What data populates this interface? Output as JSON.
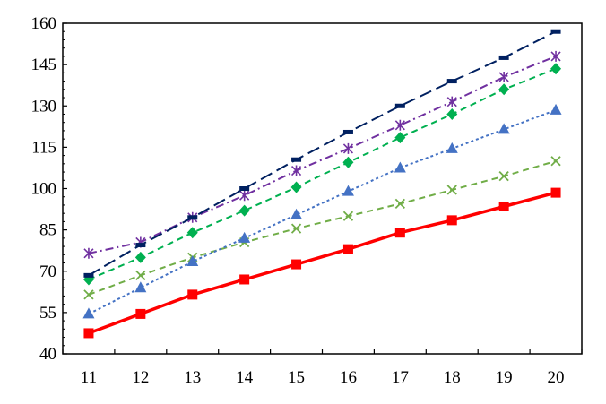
{
  "chart_data": {
    "type": "line",
    "x": [
      11,
      12,
      13,
      14,
      15,
      16,
      17,
      18,
      19,
      20
    ],
    "xlim": [
      10.5,
      20.5
    ],
    "ylim": [
      40,
      160
    ],
    "x_ticks": [
      11,
      12,
      13,
      14,
      15,
      16,
      17,
      18,
      19,
      20
    ],
    "y_ticks": [
      40,
      55,
      70,
      85,
      100,
      115,
      130,
      145,
      160
    ],
    "x_tick_labels": [
      "11",
      "12",
      "13",
      "14",
      "15",
      "16",
      "17",
      "18",
      "19",
      "20"
    ],
    "y_tick_labels": [
      "40",
      "55",
      "70",
      "85",
      "100",
      "115",
      "130",
      "145",
      "160"
    ],
    "title": "",
    "xlabel": "",
    "ylabel": "",
    "grid": false,
    "legend": "none",
    "series": [
      {
        "values": [
          47.5,
          54.5,
          61.5,
          67,
          72.5,
          78,
          84,
          88.5,
          93.5,
          98.5
        ],
        "color": "#ff0000",
        "marker": "square",
        "line": "solid"
      },
      {
        "values": [
          61.5,
          68.5,
          75,
          80.5,
          85.5,
          90,
          94.5,
          99.5,
          104.5,
          110
        ],
        "color": "#70ad47",
        "marker": "x",
        "line": "dashed"
      },
      {
        "values": [
          54.5,
          64,
          73.5,
          82,
          90.5,
          99,
          107.5,
          114.5,
          121.5,
          128.5
        ],
        "color": "#4472c4",
        "marker": "triangle",
        "line": "dotted"
      },
      {
        "values": [
          67,
          75,
          84,
          92,
          100.5,
          109.5,
          118.5,
          127,
          136,
          143.5
        ],
        "color": "#00b050",
        "marker": "diamond",
        "line": "dashed"
      },
      {
        "values": [
          76.5,
          80.5,
          89.5,
          97.5,
          106.5,
          114.5,
          123,
          131.5,
          140.5,
          148
        ],
        "color": "#7030a0",
        "marker": "asterisk",
        "line": "dash-dot"
      },
      {
        "values": [
          68.5,
          79.5,
          89.5,
          100,
          110.5,
          120.5,
          130,
          139,
          147.5,
          157
        ],
        "color": "#002060",
        "marker": "dash",
        "line": "long-dash"
      }
    ]
  }
}
